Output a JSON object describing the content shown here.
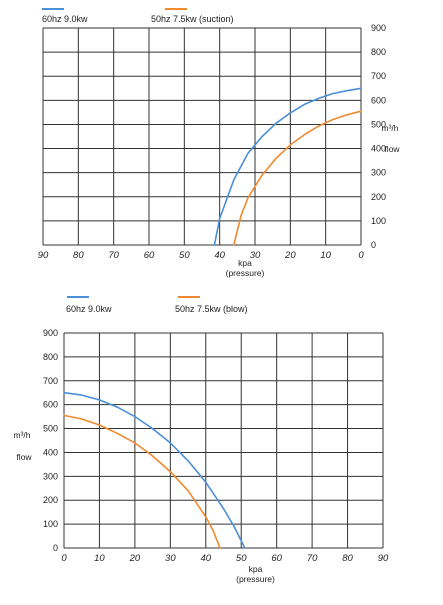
{
  "chart_data": [
    {
      "type": "line",
      "x_reversed": true,
      "x_ticks": [
        90,
        80,
        70,
        60,
        50,
        40,
        30,
        20,
        10,
        0
      ],
      "y_ticks": [
        0,
        100,
        200,
        300,
        400,
        500,
        600,
        700,
        800,
        900
      ],
      "xlim": [
        90,
        0
      ],
      "ylim": [
        0,
        900
      ],
      "xlabel": "kpa",
      "xlabel_sub": "(pressure)",
      "ylabel_unit": "m³/h",
      "ylabel": "flow",
      "grid": true,
      "legend_position": "top",
      "series": [
        {
          "name": "60hz 9.0kw",
          "color": "#4a8fd8",
          "x": [
            41.5,
            40,
            36,
            32,
            28,
            24,
            20,
            16,
            12,
            8,
            4,
            0
          ],
          "y": [
            0,
            110,
            270,
            380,
            450,
            505,
            548,
            583,
            608,
            628,
            640,
            650
          ]
        },
        {
          "name": "50hz  7.5kw  (suction)",
          "color": "#f08a30",
          "x": [
            36,
            34,
            32,
            28,
            24,
            20,
            16,
            12,
            8,
            4,
            0
          ],
          "y": [
            0,
            120,
            195,
            290,
            360,
            415,
            458,
            493,
            520,
            540,
            555
          ]
        }
      ]
    },
    {
      "type": "line",
      "x_reversed": false,
      "x_ticks": [
        0,
        10,
        20,
        30,
        40,
        50,
        60,
        70,
        80,
        90
      ],
      "y_ticks": [
        0,
        100,
        200,
        300,
        400,
        500,
        600,
        700,
        800,
        900
      ],
      "xlim": [
        0,
        90
      ],
      "ylim": [
        0,
        900
      ],
      "xlabel": "kpa",
      "xlabel_sub": "(pressure)",
      "ylabel_unit": "m³/h",
      "ylabel": "flow",
      "grid": true,
      "legend_position": "top",
      "series": [
        {
          "name": "60hz 9.0kw",
          "color": "#4a8fd8",
          "x": [
            0,
            5,
            10,
            15,
            20,
            25,
            30,
            35,
            40,
            45,
            48,
            51
          ],
          "y": [
            650,
            640,
            620,
            590,
            550,
            500,
            440,
            365,
            275,
            165,
            90,
            0
          ]
        },
        {
          "name": "50hz  7.5kw  (blow)",
          "color": "#f08a30",
          "x": [
            0,
            5,
            10,
            15,
            20,
            25,
            30,
            35,
            40,
            42,
            44
          ],
          "y": [
            555,
            540,
            515,
            480,
            440,
            385,
            320,
            240,
            130,
            75,
            0
          ]
        }
      ]
    }
  ]
}
